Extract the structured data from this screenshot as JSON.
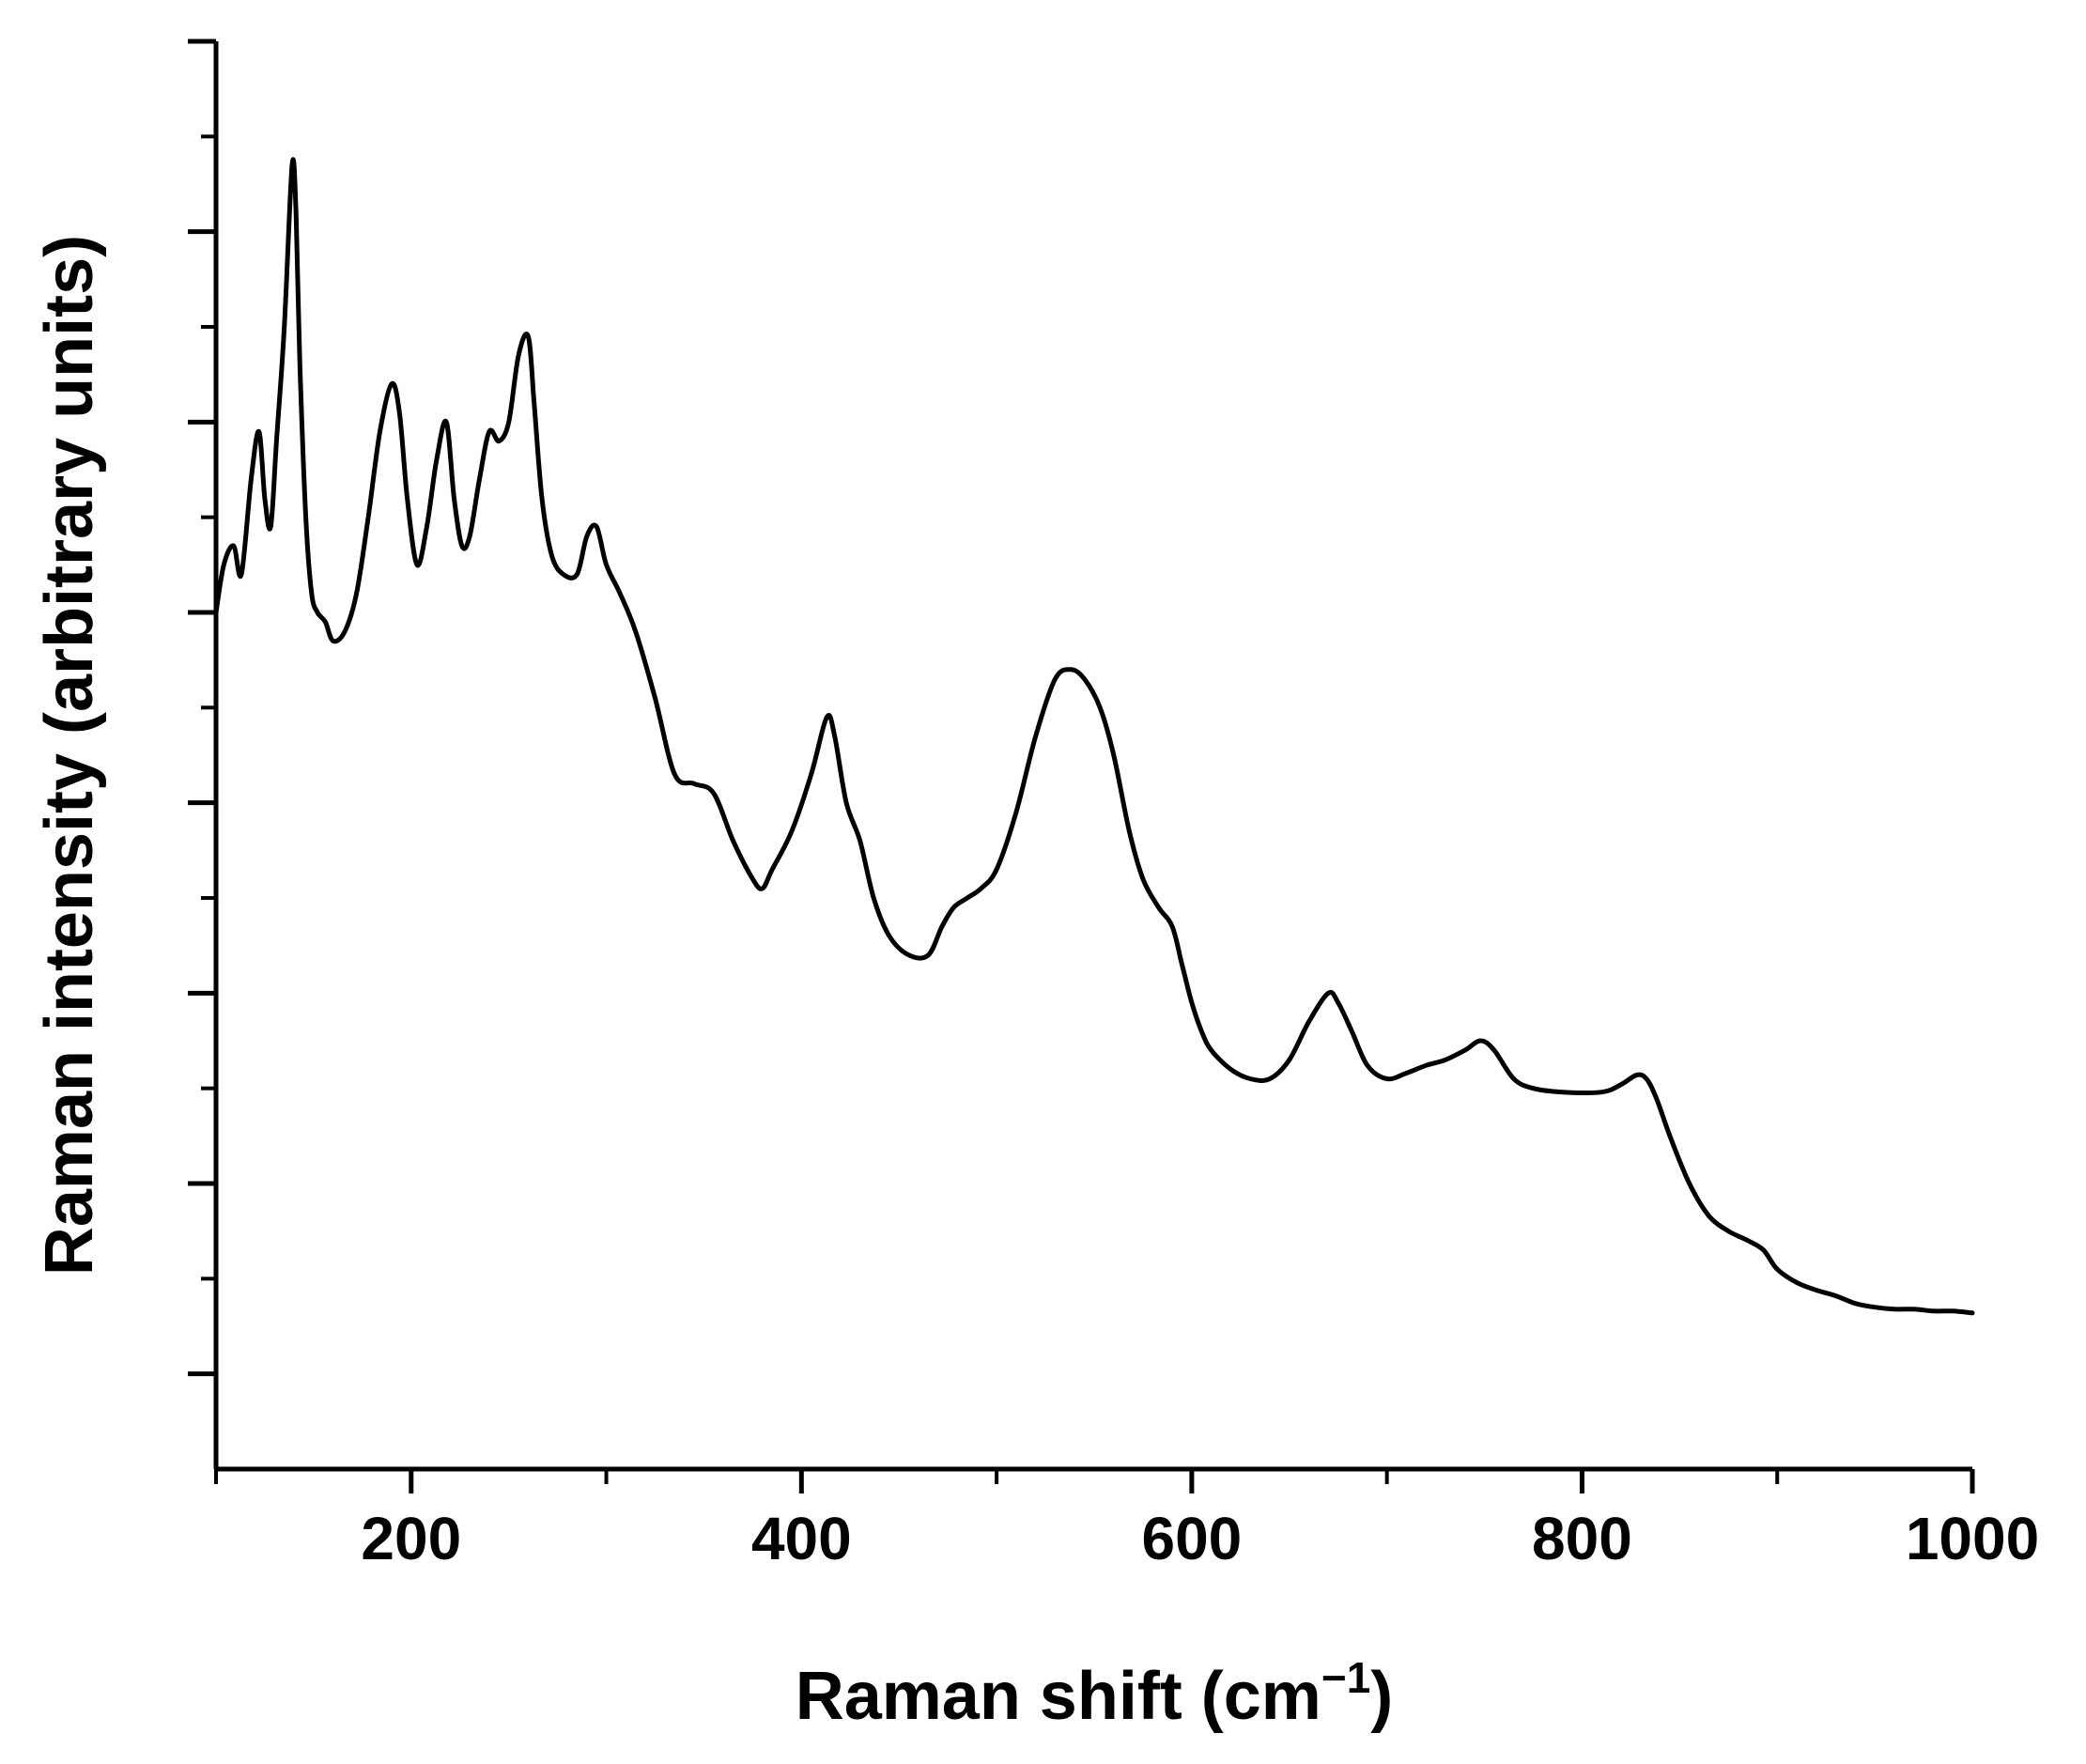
{
  "chart_data": {
    "type": "line",
    "xlabel": "Raman shift (cm",
    "xlabel_sup": "−1",
    "xlabel_close": ")",
    "ylabel": "Raman intensity (arbitrary units)",
    "xlim": [
      100,
      1000
    ],
    "ylim": [
      0,
      7.5
    ],
    "x_ticks_major": [
      200,
      400,
      600,
      800,
      1000
    ],
    "x_tick_labels": [
      "200",
      "400",
      "600",
      "800",
      "1000"
    ],
    "x_ticks_minor": [
      100,
      300,
      500,
      700,
      900
    ],
    "y_ticks_major": [
      0.5,
      1.5,
      2.5,
      3.5,
      4.5,
      5.5,
      6.5,
      7.5
    ],
    "y_ticks_minor": [
      1,
      2,
      3,
      4,
      5,
      6,
      7
    ],
    "y_tick_labels_shown": false,
    "grid": false,
    "legend": "none",
    "series": [
      {
        "color": "#000000",
        "x": [
          100,
          104,
          109,
          113,
          118,
          122,
          125,
          128,
          131,
          135,
          139,
          141,
          143,
          146,
          149,
          152,
          156,
          160,
          166,
          172,
          178,
          184,
          190,
          194,
          198,
          203,
          208,
          213,
          218,
          222,
          226,
          230,
          235,
          240,
          245,
          250,
          255,
          260,
          263,
          267,
          272,
          278,
          285,
          290,
          295,
          300,
          307,
          315,
          325,
          335,
          345,
          355,
          365,
          375,
          380,
          385,
          395,
          405,
          413,
          417,
          423,
          430,
          437,
          445,
          455,
          465,
          472,
          478,
          485,
          492,
          500,
          510,
          520,
          530,
          538,
          545,
          553,
          560,
          568,
          575,
          583,
          590,
          595,
          600,
          605,
          610,
          620,
          630,
          640,
          650,
          660,
          670,
          675,
          682,
          690,
          700,
          710,
          720,
          730,
          740,
          748,
          755,
          765,
          775,
          790,
          810,
          820,
          828,
          833,
          838,
          845,
          855,
          865,
          875,
          885,
          893,
          900,
          910,
          920,
          930,
          940,
          950,
          960,
          970,
          980,
          990,
          1000
        ],
        "y": [
          4.5,
          4.75,
          4.85,
          4.7,
          5.2,
          5.45,
          5.1,
          4.95,
          5.4,
          6.0,
          6.85,
          6.6,
          5.8,
          5.0,
          4.6,
          4.5,
          4.45,
          4.35,
          4.4,
          4.6,
          5.0,
          5.45,
          5.7,
          5.55,
          5.1,
          4.75,
          4.95,
          5.3,
          5.5,
          5.1,
          4.85,
          4.9,
          5.2,
          5.45,
          5.4,
          5.5,
          5.85,
          5.95,
          5.6,
          5.1,
          4.8,
          4.7,
          4.7,
          4.9,
          4.95,
          4.75,
          4.6,
          4.4,
          4.05,
          3.65,
          3.6,
          3.55,
          3.3,
          3.1,
          3.05,
          3.15,
          3.35,
          3.65,
          3.95,
          3.85,
          3.5,
          3.3,
          3.0,
          2.8,
          2.7,
          2.7,
          2.85,
          2.95,
          3.0,
          3.05,
          3.15,
          3.45,
          3.85,
          4.15,
          4.2,
          4.15,
          4.0,
          3.75,
          3.35,
          3.1,
          2.95,
          2.85,
          2.65,
          2.45,
          2.3,
          2.2,
          2.1,
          2.05,
          2.05,
          2.15,
          2.35,
          2.5,
          2.45,
          2.3,
          2.12,
          2.05,
          2.08,
          2.12,
          2.15,
          2.2,
          2.25,
          2.2,
          2.05,
          2.0,
          1.98,
          1.98,
          2.02,
          2.07,
          2.05,
          1.95,
          1.75,
          1.5,
          1.33,
          1.25,
          1.2,
          1.15,
          1.05,
          0.98,
          0.94,
          0.91,
          0.87,
          0.85,
          0.84,
          0.84,
          0.83,
          0.83,
          0.82
        ]
      }
    ]
  }
}
